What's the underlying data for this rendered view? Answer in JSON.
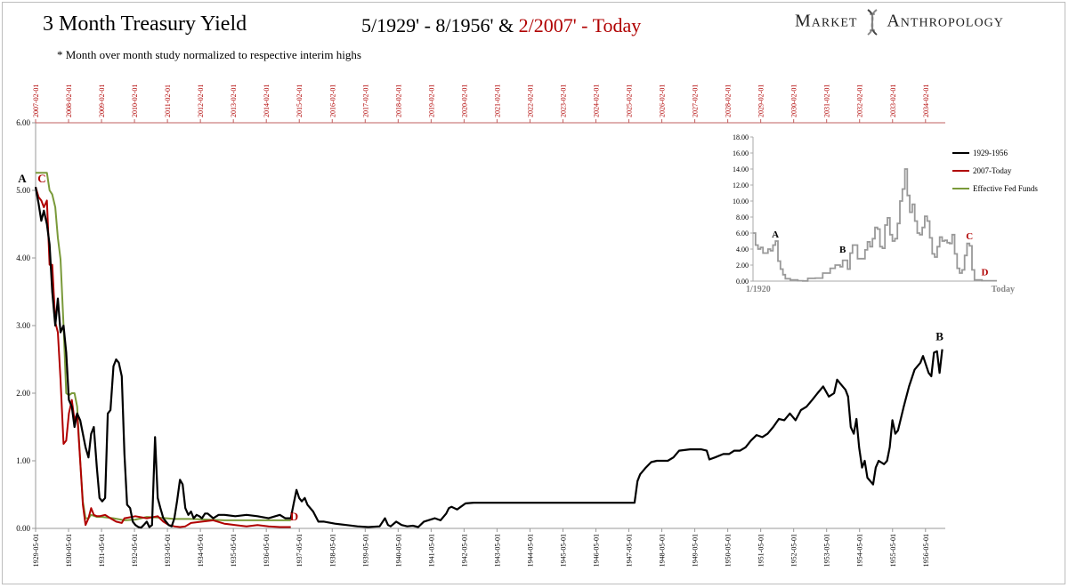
{
  "header": {
    "title": "3 Month Treasury Yield",
    "subtitle_part1": "5/1929' - 8/1956' & ",
    "subtitle_part2": "2/2007' - Today",
    "note": "* Month over month study normalized to respective interim highs",
    "brand_left": "Market",
    "brand_right": "Anthropology"
  },
  "colors": {
    "series_1929": "#000000",
    "series_2007": "#b00000",
    "series_fedfunds": "#7a9a3a",
    "inset": "#999999",
    "top_axis": "#b00000"
  },
  "chart_data": [
    {
      "type": "line",
      "ylim": [
        0,
        6
      ],
      "yticks": [
        "0.00",
        "1.00",
        "2.00",
        "3.00",
        "4.00",
        "5.00",
        "6.00"
      ],
      "bottom_tick_labels": [
        "1929-05-01",
        "1930-05-01",
        "1931-05-01",
        "1932-05-01",
        "1933-05-01",
        "1934-05-01",
        "1935-05-01",
        "1936-05-01",
        "1937-05-01",
        "1938-05-01",
        "1939-05-01",
        "1940-05-01",
        "1941-05-01",
        "1942-05-01",
        "1943-05-01",
        "1944-05-01",
        "1945-05-01",
        "1946-05-01",
        "1947-05-01",
        "1948-05-01",
        "1949-05-01",
        "1950-05-01",
        "1951-05-01",
        "1952-05-01",
        "1953-05-01",
        "1954-05-01",
        "1955-05-01",
        "1956-05-01"
      ],
      "top_tick_labels": [
        "2007-02-01",
        "2008-02-01",
        "2009-02-01",
        "2010-02-01",
        "2011-02-01",
        "2012-02-01",
        "2013-02-01",
        "2014-02-01",
        "2015-02-01",
        "2016-02-01",
        "2017-02-01",
        "2018-02-01",
        "2019-02-01",
        "2020-02-01",
        "2021-02-01",
        "2022-02-01",
        "2023-02-01",
        "2024-02-01",
        "2025-02-01",
        "2026-02-01",
        "2027-02-01",
        "2028-02-01",
        "2029-02-01",
        "2030-02-01",
        "2031-02-01",
        "2032-02-01",
        "2033-02-01",
        "2034-02-01"
      ],
      "x_start": 1929.33,
      "x_end": 1956.67,
      "series": [
        {
          "key": "s1929",
          "x": [
            1929.33,
            1929.42,
            1929.5,
            1929.58,
            1929.67,
            1929.75,
            1929.83,
            1929.92,
            1930.0,
            1930.08,
            1930.17,
            1930.25,
            1930.33,
            1930.42,
            1930.5,
            1930.58,
            1930.67,
            1930.75,
            1930.83,
            1930.92,
            1931.0,
            1931.08,
            1931.17,
            1931.25,
            1931.33,
            1931.42,
            1931.5,
            1931.58,
            1931.67,
            1931.75,
            1931.83,
            1931.92,
            1932.0,
            1932.08,
            1932.17,
            1932.25,
            1932.33,
            1932.42,
            1932.5,
            1932.58,
            1932.67,
            1932.75,
            1932.83,
            1932.92,
            1933.0,
            1933.08,
            1933.17,
            1933.25,
            1933.33,
            1933.42,
            1933.5,
            1933.58,
            1933.67,
            1933.75,
            1933.83,
            1933.92,
            1934.0,
            1934.08,
            1934.17,
            1934.25,
            1934.33,
            1934.42,
            1934.5,
            1934.67,
            1934.83,
            1935.0,
            1935.33,
            1935.67,
            1936.0,
            1936.33,
            1936.67,
            1936.83,
            1937.0,
            1937.08,
            1937.17,
            1937.25,
            1937.33,
            1937.42,
            1937.5,
            1937.67,
            1937.83,
            1938.0,
            1938.33,
            1938.67,
            1939.0,
            1939.33,
            1939.67,
            1939.83,
            1939.92,
            1940.0,
            1940.17,
            1940.33,
            1940.5,
            1940.67,
            1940.83,
            1941.0,
            1941.33,
            1941.5,
            1941.67,
            1941.75,
            1941.83,
            1942.0,
            1942.25,
            1942.5,
            1943,
            1944,
            1945,
            1946,
            1947.0,
            1947.33,
            1947.42,
            1947.5,
            1947.67,
            1947.83,
            1948.0,
            1948.33,
            1948.5,
            1948.67,
            1949.0,
            1949.33,
            1949.5,
            1949.58,
            1949.75,
            1950.0,
            1950.17,
            1950.33,
            1950.5,
            1950.67,
            1950.83,
            1951.0,
            1951.17,
            1951.33,
            1951.5,
            1951.67,
            1951.83,
            1952.0,
            1952.17,
            1952.33,
            1952.5,
            1952.67,
            1952.83,
            1953.0,
            1953.17,
            1953.33,
            1953.42,
            1953.5,
            1953.67,
            1953.75,
            1953.83,
            1953.92,
            1954.0,
            1954.08,
            1954.17,
            1954.25,
            1954.33,
            1954.5,
            1954.58,
            1954.67,
            1954.83,
            1954.92,
            1955.0,
            1955.08,
            1955.17,
            1955.25,
            1955.42,
            1955.58,
            1955.75,
            1955.92,
            1956.0,
            1956.17,
            1956.25,
            1956.33,
            1956.42,
            1956.5,
            1956.58
          ],
          "y": [
            5.05,
            4.8,
            4.55,
            4.7,
            4.5,
            4.2,
            3.5,
            3.0,
            3.4,
            2.9,
            3.0,
            2.6,
            1.9,
            1.8,
            1.5,
            1.7,
            1.6,
            1.4,
            1.2,
            1.05,
            1.4,
            1.5,
            0.9,
            0.45,
            0.4,
            0.45,
            1.7,
            1.75,
            2.4,
            2.5,
            2.45,
            2.25,
            1.1,
            0.35,
            0.3,
            0.1,
            0.05,
            0.02,
            0.01,
            0.05,
            0.1,
            0.02,
            0.05,
            1.35,
            0.45,
            0.3,
            0.15,
            0.1,
            0.05,
            0.03,
            0.15,
            0.4,
            0.72,
            0.65,
            0.3,
            0.2,
            0.25,
            0.15,
            0.2,
            0.18,
            0.15,
            0.22,
            0.22,
            0.15,
            0.2,
            0.2,
            0.18,
            0.2,
            0.18,
            0.15,
            0.2,
            0.15,
            0.15,
            0.35,
            0.57,
            0.45,
            0.4,
            0.45,
            0.35,
            0.25,
            0.1,
            0.1,
            0.07,
            0.05,
            0.03,
            0.02,
            0.03,
            0.15,
            0.05,
            0.03,
            0.1,
            0.05,
            0.03,
            0.04,
            0.02,
            0.1,
            0.15,
            0.12,
            0.22,
            0.3,
            0.32,
            0.28,
            0.37,
            0.38,
            0.38,
            0.38,
            0.38,
            0.38,
            0.38,
            0.38,
            0.7,
            0.8,
            0.9,
            0.98,
            1.0,
            1.0,
            1.05,
            1.15,
            1.17,
            1.17,
            1.15,
            1.02,
            1.05,
            1.1,
            1.1,
            1.15,
            1.15,
            1.2,
            1.3,
            1.38,
            1.35,
            1.4,
            1.5,
            1.62,
            1.6,
            1.7,
            1.6,
            1.75,
            1.8,
            1.9,
            2.0,
            2.1,
            1.95,
            2.0,
            2.2,
            2.15,
            2.05,
            1.95,
            1.5,
            1.4,
            1.62,
            1.2,
            0.9,
            1.0,
            0.75,
            0.65,
            0.9,
            1.0,
            0.95,
            1.0,
            1.2,
            1.6,
            1.4,
            1.45,
            1.8,
            2.1,
            2.35,
            2.45,
            2.55,
            2.3,
            2.25,
            2.6,
            2.62,
            2.3,
            2.65
          ]
        },
        {
          "key": "s2007",
          "x": [
            1929.33,
            1929.42,
            1929.5,
            1929.58,
            1929.67,
            1929.75,
            1929.83,
            1929.92,
            1930.0,
            1930.08,
            1930.17,
            1930.25,
            1930.33,
            1930.42,
            1930.5,
            1930.58,
            1930.67,
            1930.75,
            1930.83,
            1930.92,
            1931.0,
            1931.08,
            1931.17,
            1931.25,
            1931.42,
            1931.58,
            1931.75,
            1931.92,
            1932.0,
            1932.33,
            1932.67,
            1933.0,
            1933.17,
            1933.33,
            1933.5,
            1933.67,
            1933.83,
            1934.0,
            1934.33,
            1934.67,
            1935.0,
            1935.33,
            1935.67,
            1936.0,
            1936.33,
            1936.67,
            1937.0
          ],
          "y": [
            5.05,
            4.9,
            4.85,
            4.75,
            4.85,
            3.9,
            3.9,
            3.05,
            2.9,
            2.2,
            1.25,
            1.3,
            1.7,
            1.9,
            1.6,
            1.7,
            1.0,
            0.35,
            0.05,
            0.15,
            0.3,
            0.2,
            0.18,
            0.18,
            0.2,
            0.15,
            0.1,
            0.08,
            0.15,
            0.18,
            0.15,
            0.18,
            0.1,
            0.05,
            0.03,
            0.02,
            0.03,
            0.08,
            0.1,
            0.12,
            0.07,
            0.05,
            0.03,
            0.05,
            0.03,
            0.02,
            0.02
          ]
        },
        {
          "key": "fedfunds",
          "x": [
            1929.33,
            1929.67,
            1929.75,
            1929.83,
            1929.92,
            1930.0,
            1930.08,
            1930.17,
            1930.25,
            1930.33,
            1930.42,
            1930.5,
            1930.58,
            1930.67,
            1930.75,
            1930.83,
            1930.92,
            1931.0,
            1931.17,
            1931.33,
            1931.67,
            1932.0,
            1932.33,
            1932.67,
            1933.0,
            1933.5,
            1934.0,
            1935.0,
            1936.0,
            1937.0
          ],
          "y": [
            5.26,
            5.26,
            5.0,
            4.94,
            4.75,
            4.3,
            3.98,
            3.0,
            2.0,
            1.97,
            2.0,
            2.0,
            1.8,
            1.0,
            0.4,
            0.15,
            0.15,
            0.2,
            0.17,
            0.17,
            0.15,
            0.12,
            0.13,
            0.17,
            0.16,
            0.14,
            0.14,
            0.12,
            0.12,
            0.12
          ]
        }
      ],
      "annotations": [
        {
          "text": "A",
          "x": 1929.0,
          "y": 5.12,
          "color": "#000000"
        },
        {
          "text": "C",
          "x": 1930.0,
          "y": 5.12,
          "color": "#b00000"
        },
        {
          "text": "B",
          "x": 1956.5,
          "y": 2.78,
          "color": "#000000"
        },
        {
          "text": "D",
          "x": 1937.1,
          "y": 0.12,
          "color": "#b00000"
        }
      ]
    },
    {
      "type": "line",
      "ylim": [
        0,
        18
      ],
      "yticks": [
        "0.00",
        "2.00",
        "4.00",
        "6.00",
        "8.00",
        "10.00",
        "12.00",
        "14.00",
        "16.00",
        "18.00"
      ],
      "x_start_label": "1/1920",
      "x_end_label": "Today",
      "legend": [
        {
          "name": "1929-1956",
          "color": "#000000"
        },
        {
          "name": "2007-Today",
          "color": "#b00000"
        },
        {
          "name": "Effective Fed Funds",
          "color": "#7a9a3a"
        }
      ],
      "x": [
        1920,
        1921,
        1922,
        1923,
        1924,
        1925,
        1926,
        1927,
        1928,
        1929,
        1930,
        1931,
        1932,
        1933,
        1935,
        1938,
        1940,
        1942,
        1945,
        1948,
        1951,
        1953,
        1955,
        1956,
        1958,
        1959,
        1960,
        1962,
        1965,
        1966,
        1967,
        1968,
        1969,
        1970,
        1971,
        1972,
        1973,
        1974,
        1975,
        1976,
        1977,
        1978,
        1979,
        1980,
        1981,
        1982,
        1983,
        1984,
        1985,
        1986,
        1987,
        1988,
        1989,
        1990,
        1991,
        1992,
        1993,
        1994,
        1995,
        1996,
        1997,
        1998,
        1999,
        2000,
        2001,
        2002,
        2003,
        2004,
        2005,
        2006,
        2007,
        2008,
        2009,
        2012,
        2015,
        2018
      ],
      "y": [
        6.0,
        4.5,
        4.0,
        4.2,
        3.5,
        3.5,
        4.0,
        3.8,
        4.5,
        5.0,
        2.5,
        1.5,
        0.8,
        0.3,
        0.15,
        0.05,
        0.02,
        0.35,
        0.38,
        1.0,
        1.6,
        2.0,
        1.8,
        2.6,
        1.5,
        3.5,
        4.5,
        2.8,
        3.9,
        4.9,
        4.3,
        5.3,
        6.7,
        6.5,
        4.3,
        4.1,
        7.0,
        7.9,
        5.8,
        5.0,
        5.3,
        7.2,
        10.0,
        11.5,
        14.0,
        10.7,
        8.6,
        9.6,
        7.5,
        6.0,
        5.8,
        6.7,
        8.1,
        7.5,
        5.4,
        3.4,
        3.0,
        4.3,
        5.5,
        5.0,
        5.1,
        4.8,
        4.7,
        5.8,
        3.4,
        1.6,
        1.0,
        1.4,
        3.2,
        4.7,
        4.4,
        1.4,
        0.15,
        0.05,
        0.05,
        0.05
      ],
      "annotations": [
        {
          "text": "A",
          "x": 1929,
          "y": 5.0,
          "color": "#000000"
        },
        {
          "text": "B",
          "x": 1956,
          "y": 3.1,
          "color": "#000000"
        },
        {
          "text": "C",
          "x": 2007,
          "y": 4.8,
          "color": "#b00000"
        },
        {
          "text": "D",
          "x": 2011,
          "y": 0.3,
          "color": "#b00000"
        }
      ]
    }
  ]
}
